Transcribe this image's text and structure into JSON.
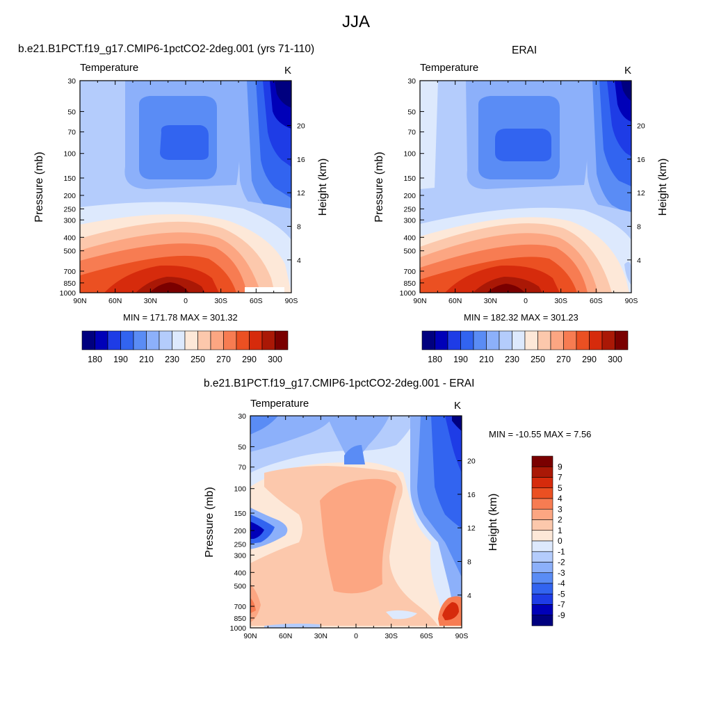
{
  "figure_title": "JJA",
  "panels": [
    {
      "title": "b.e21.B1PCT.f19_g17.CMIP6-1pctCO2-2deg.001 (yrs 71-110)",
      "field": "Temperature",
      "units": "K",
      "stats": "MIN = 171.78  MAX = 301.32",
      "y_label": "Pressure (mb)",
      "y2_label": "Height (km)"
    },
    {
      "title": "ERAI",
      "field": "Temperature",
      "units": "K",
      "stats": "MIN = 182.32  MAX = 301.23",
      "y_label": "Pressure (mb)",
      "y2_label": "Height (km)"
    },
    {
      "title": "b.e21.B1PCT.f19_g17.CMIP6-1pctCO2-2deg.001 - ERAI",
      "field": "Temperature",
      "units": "K",
      "stats": "MIN = -10.55  MAX =   7.56",
      "y_label": "Pressure (mb)",
      "y2_label": "Height (km)"
    }
  ],
  "chart_data": [
    {
      "type": "heatmap",
      "title": "b.e21.B1PCT.f19_g17.CMIP6-1pctCO2-2deg.001 (yrs 71-110)",
      "field": "Temperature",
      "units": "K",
      "x_tick_labels": [
        "90N",
        "60N",
        "30N",
        "0",
        "30S",
        "60S",
        "90S"
      ],
      "x_range": [
        90,
        -90
      ],
      "y_label": "Pressure (mb)",
      "y_tick_labels": [
        "30",
        "50",
        "70",
        "100",
        "150",
        "200",
        "250",
        "300",
        "400",
        "500",
        "700",
        "850",
        "1000"
      ],
      "y_range": [
        30,
        1000
      ],
      "y_scale": "log",
      "y2_label": "Height (km)",
      "y2_tick_labels": [
        "4",
        "8",
        "12",
        "16",
        "20"
      ],
      "min": 171.78,
      "max": 301.32,
      "colorbar_levels": [
        180,
        185,
        190,
        200,
        210,
        220,
        230,
        240,
        250,
        260,
        270,
        280,
        290,
        295,
        300
      ],
      "colorbar_tick_labels": [
        "180",
        "190",
        "210",
        "230",
        "250",
        "270",
        "290",
        "300"
      ],
      "colorbar_colors": [
        "#00007f",
        "#0000b8",
        "#1e3ce6",
        "#3264f0",
        "#5a8cf5",
        "#8cb0fa",
        "#b4ccfc",
        "#dde9fd",
        "#fde8d8",
        "#fcc8ac",
        "#fca682",
        "#f77c52",
        "#eb5022",
        "#d62b0c",
        "#aa1806",
        "#7a0000"
      ]
    },
    {
      "type": "heatmap",
      "title": "ERAI",
      "field": "Temperature",
      "units": "K",
      "x_tick_labels": [
        "90N",
        "60N",
        "30N",
        "0",
        "30S",
        "60S",
        "90S"
      ],
      "x_range": [
        90,
        -90
      ],
      "y_label": "Pressure (mb)",
      "y_tick_labels": [
        "30",
        "50",
        "70",
        "100",
        "150",
        "200",
        "250",
        "300",
        "400",
        "500",
        "700",
        "850",
        "1000"
      ],
      "y_range": [
        30,
        1000
      ],
      "y_scale": "log",
      "y2_label": "Height (km)",
      "y2_tick_labels": [
        "4",
        "8",
        "12",
        "16",
        "20"
      ],
      "min": 182.32,
      "max": 301.23,
      "colorbar_levels": [
        180,
        185,
        190,
        200,
        210,
        220,
        230,
        240,
        250,
        260,
        270,
        280,
        290,
        295,
        300
      ],
      "colorbar_tick_labels": [
        "180",
        "190",
        "210",
        "230",
        "250",
        "270",
        "290",
        "300"
      ],
      "colorbar_colors": [
        "#00007f",
        "#0000b8",
        "#1e3ce6",
        "#3264f0",
        "#5a8cf5",
        "#8cb0fa",
        "#b4ccfc",
        "#dde9fd",
        "#fde8d8",
        "#fcc8ac",
        "#fca682",
        "#f77c52",
        "#eb5022",
        "#d62b0c",
        "#aa1806",
        "#7a0000"
      ]
    },
    {
      "type": "heatmap",
      "title": "b.e21.B1PCT.f19_g17.CMIP6-1pctCO2-2deg.001 - ERAI",
      "field": "Temperature",
      "units": "K",
      "x_tick_labels": [
        "90N",
        "60N",
        "30N",
        "0",
        "30S",
        "60S",
        "90S"
      ],
      "x_range": [
        90,
        -90
      ],
      "y_label": "Pressure (mb)",
      "y_tick_labels": [
        "30",
        "50",
        "70",
        "100",
        "150",
        "200",
        "250",
        "300",
        "400",
        "500",
        "700",
        "850",
        "1000"
      ],
      "y_range": [
        30,
        1000
      ],
      "y_scale": "log",
      "y2_label": "Height (km)",
      "y2_tick_labels": [
        "4",
        "8",
        "12",
        "16",
        "20"
      ],
      "min": -10.55,
      "max": 7.56,
      "colorbar_tick_labels": [
        "9",
        "7",
        "5",
        "4",
        "3",
        "2",
        "1",
        "0",
        "-1",
        "-2",
        "-3",
        "-4",
        "-5",
        "-7",
        "-9"
      ],
      "colorbar_colors": [
        "#7a0000",
        "#aa1806",
        "#d62b0c",
        "#eb5022",
        "#f77c52",
        "#fca682",
        "#fcc8ac",
        "#fde8d8",
        "#dde9fd",
        "#b4ccfc",
        "#8cb0fa",
        "#5a8cf5",
        "#3264f0",
        "#1e3ce6",
        "#0000b8",
        "#00007f"
      ]
    }
  ]
}
